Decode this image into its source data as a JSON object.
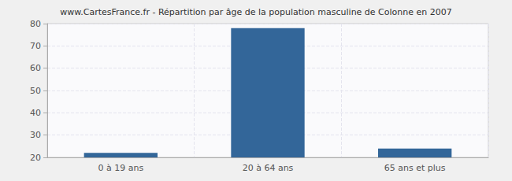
{
  "chart_data": {
    "type": "bar",
    "title": "www.CartesFrance.fr - Répartition par âge de la population masculine de Colonne en 2007",
    "categories": [
      "0 à 19 ans",
      "20 à 64 ans",
      "65 ans et plus"
    ],
    "values": [
      22,
      78,
      24
    ],
    "color": "#336699",
    "ylim": [
      20,
      80
    ],
    "yticks": [
      20,
      30,
      40,
      50,
      60,
      70,
      80
    ],
    "grid": true
  }
}
